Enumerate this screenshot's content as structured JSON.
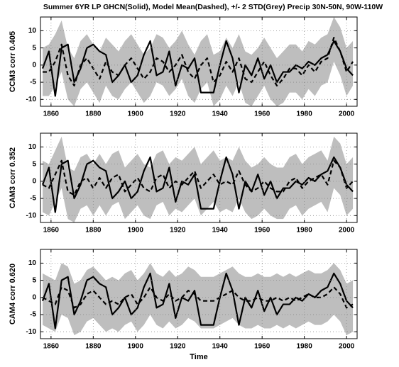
{
  "title": "Summer 6YR LP GHCN(Solid), Model Mean(Dashed), +/- 2 STD(Grey) Precip 30N-50N, 90W-110W",
  "x_label": "Time",
  "chart_data": [
    {
      "type": "line",
      "y_label": "CCM3 corr 0.405",
      "x": [
        1856,
        1859,
        1862,
        1865,
        1868,
        1871,
        1874,
        1877,
        1880,
        1883,
        1886,
        1889,
        1892,
        1895,
        1898,
        1901,
        1904,
        1907,
        1910,
        1913,
        1916,
        1919,
        1922,
        1925,
        1928,
        1931,
        1934,
        1937,
        1940,
        1943,
        1946,
        1949,
        1952,
        1955,
        1958,
        1961,
        1964,
        1967,
        1970,
        1973,
        1976,
        1979,
        1982,
        1985,
        1988,
        1991,
        1994,
        1997,
        2000,
        2003
      ],
      "xlim": [
        1855,
        2005
      ],
      "xticks": [
        1860,
        1880,
        1900,
        1920,
        1940,
        1960,
        1980,
        2000
      ],
      "ylim": [
        -12,
        14
      ],
      "yticks": [
        -10,
        -5,
        0,
        5,
        10
      ],
      "grid": true,
      "band": {
        "color": "#bebebe",
        "upper": [
          5,
          6,
          9,
          13,
          5,
          2,
          7,
          9,
          6,
          4,
          8,
          6,
          4,
          7,
          9,
          6,
          3,
          5,
          9,
          8,
          5,
          7,
          10,
          6,
          3,
          7,
          9,
          3,
          4,
          8,
          5,
          9,
          4,
          3,
          5,
          8,
          5,
          2,
          4,
          6,
          6,
          4,
          7,
          6,
          8,
          9,
          14,
          11,
          5,
          7
        ],
        "lower": [
          -9,
          -9,
          -6,
          -2,
          -10,
          -12,
          -7,
          -5,
          -8,
          -11,
          -6,
          -9,
          -10,
          -7,
          -5,
          -8,
          -11,
          -9,
          -5,
          -6,
          -9,
          -7,
          -4,
          -9,
          -11,
          -7,
          -5,
          -12,
          -10,
          -6,
          -9,
          -5,
          -11,
          -12,
          -9,
          -6,
          -10,
          -12,
          -11,
          -8,
          -8,
          -10,
          -7,
          -9,
          -6,
          -5,
          1,
          -3,
          -9,
          -6
        ]
      },
      "series": [
        {
          "color": "#000000",
          "style": "solid",
          "values": [
            -1,
            4,
            -9,
            5,
            6,
            -5,
            -1,
            5,
            6,
            4,
            3,
            -5,
            -3,
            0,
            -5,
            -3,
            3,
            7,
            -3,
            -2,
            4,
            -6,
            0,
            -1,
            2,
            -8,
            -8,
            -8,
            0,
            7,
            2,
            -8,
            0,
            -3,
            2,
            -4,
            0,
            -5,
            -2,
            -2,
            0,
            -1,
            1,
            0,
            2,
            3,
            7,
            4,
            -1,
            -3
          ]
        },
        {
          "color": "#000000",
          "style": "dashed",
          "values": [
            -2,
            -2,
            1,
            6,
            -3,
            -6,
            0,
            2,
            -1,
            -4,
            1,
            -2,
            -3,
            0,
            2,
            -1,
            -4,
            -2,
            2,
            1,
            -2,
            0,
            3,
            -2,
            -4,
            0,
            2,
            -5,
            -3,
            1,
            -2,
            2,
            -4,
            -5,
            -2,
            1,
            -3,
            -6,
            -4,
            -1,
            -1,
            -3,
            0,
            -2,
            1,
            2,
            8,
            4,
            -2,
            1
          ]
        }
      ]
    },
    {
      "type": "line",
      "y_label": "CAM3 corr 0.352",
      "x": [
        1856,
        1859,
        1862,
        1865,
        1868,
        1871,
        1874,
        1877,
        1880,
        1883,
        1886,
        1889,
        1892,
        1895,
        1898,
        1901,
        1904,
        1907,
        1910,
        1913,
        1916,
        1919,
        1922,
        1925,
        1928,
        1931,
        1934,
        1937,
        1940,
        1943,
        1946,
        1949,
        1952,
        1955,
        1958,
        1961,
        1964,
        1967,
        1970,
        1973,
        1976,
        1979,
        1982,
        1985,
        1988,
        1991,
        1994,
        1997,
        2000,
        2003
      ],
      "xlim": [
        1855,
        2005
      ],
      "xticks": [
        1860,
        1880,
        1900,
        1920,
        1940,
        1960,
        1980,
        2000
      ],
      "ylim": [
        -12,
        14
      ],
      "yticks": [
        -10,
        -5,
        0,
        5,
        10
      ],
      "grid": true,
      "band": {
        "color": "#bebebe",
        "upper": [
          6,
          5,
          9,
          13,
          4,
          3,
          7,
          8,
          5,
          8,
          5,
          8,
          9,
          4,
          6,
          8,
          5,
          4,
          8,
          9,
          5,
          7,
          6,
          8,
          10,
          5,
          7,
          9,
          6,
          7,
          6,
          10,
          6,
          4,
          5,
          7,
          5,
          4,
          4,
          7,
          8,
          5,
          7,
          8,
          9,
          6,
          13,
          11,
          5,
          7
        ],
        "lower": [
          -9,
          -10,
          -6,
          -2,
          -11,
          -12,
          -8,
          -7,
          -10,
          -7,
          -10,
          -7,
          -6,
          -11,
          -9,
          -7,
          -10,
          -11,
          -7,
          -6,
          -10,
          -8,
          -9,
          -7,
          -5,
          -10,
          -8,
          -6,
          -9,
          -8,
          -9,
          -5,
          -9,
          -11,
          -10,
          -8,
          -10,
          -11,
          -11,
          -8,
          -7,
          -10,
          -8,
          -7,
          -6,
          -9,
          -2,
          -4,
          -10,
          -8
        ]
      },
      "series": [
        {
          "color": "#000000",
          "style": "solid",
          "values": [
            -1,
            4,
            -9,
            5,
            6,
            -5,
            -1,
            5,
            6,
            4,
            3,
            -5,
            -3,
            0,
            -5,
            -3,
            3,
            7,
            -3,
            -2,
            4,
            -6,
            0,
            -1,
            2,
            -8,
            -8,
            -8,
            0,
            7,
            2,
            -8,
            0,
            -3,
            2,
            -4,
            0,
            -5,
            -2,
            -2,
            0,
            -1,
            1,
            0,
            2,
            3,
            7,
            4,
            -1,
            -3
          ]
        },
        {
          "color": "#000000",
          "style": "dashed",
          "values": [
            -1,
            -2,
            2,
            6,
            -3,
            -4,
            0,
            1,
            -2,
            1,
            -2,
            1,
            2,
            -3,
            -1,
            1,
            -2,
            -3,
            1,
            2,
            -2,
            0,
            -1,
            1,
            3,
            -2,
            0,
            2,
            -1,
            0,
            -1,
            3,
            -1,
            -3,
            -2,
            0,
            -2,
            -3,
            -3,
            0,
            1,
            -2,
            0,
            1,
            2,
            -1,
            6,
            4,
            -2,
            0
          ]
        }
      ]
    },
    {
      "type": "line",
      "y_label": "CAM4 corr 0.620",
      "x": [
        1856,
        1859,
        1862,
        1865,
        1868,
        1871,
        1874,
        1877,
        1880,
        1883,
        1886,
        1889,
        1892,
        1895,
        1898,
        1901,
        1904,
        1907,
        1910,
        1913,
        1916,
        1919,
        1922,
        1925,
        1928,
        1931,
        1934,
        1937,
        1940,
        1943,
        1946,
        1949,
        1952,
        1955,
        1958,
        1961,
        1964,
        1967,
        1970,
        1973,
        1976,
        1979,
        1982,
        1985,
        1988,
        1991,
        1994,
        1997,
        2000,
        2003
      ],
      "xlim": [
        1855,
        2005
      ],
      "xticks": [
        1860,
        1880,
        1900,
        1920,
        1940,
        1960,
        1980,
        2000
      ],
      "ylim": [
        -12,
        14
      ],
      "yticks": [
        -10,
        -5,
        0,
        5,
        10
      ],
      "grid": true,
      "band": {
        "color": "#bebebe",
        "upper": [
          7,
          6,
          5,
          10,
          9,
          4,
          5,
          8,
          9,
          7,
          5,
          6,
          5,
          7,
          8,
          5,
          7,
          10,
          7,
          6,
          8,
          6,
          7,
          9,
          8,
          6,
          6,
          6,
          7,
          8,
          9,
          7,
          6,
          6,
          7,
          6,
          6,
          7,
          6,
          7,
          6,
          7,
          8,
          7,
          7,
          8,
          10,
          8,
          4,
          5
        ],
        "lower": [
          -8,
          -9,
          -10,
          -5,
          -6,
          -11,
          -10,
          -7,
          -6,
          -8,
          -10,
          -9,
          -10,
          -8,
          -7,
          -10,
          -8,
          -5,
          -8,
          -9,
          -7,
          -9,
          -8,
          -6,
          -7,
          -9,
          -9,
          -9,
          -8,
          -7,
          -6,
          -8,
          -9,
          -9,
          -8,
          -9,
          -9,
          -8,
          -9,
          -8,
          -9,
          -8,
          -7,
          -8,
          -8,
          -7,
          -5,
          -7,
          -11,
          -10
        ]
      },
      "series": [
        {
          "color": "#000000",
          "style": "solid",
          "values": [
            -1,
            4,
            -9,
            5,
            6,
            -5,
            -1,
            5,
            6,
            4,
            3,
            -5,
            -3,
            0,
            -5,
            -3,
            3,
            7,
            -3,
            -2,
            4,
            -6,
            0,
            -1,
            2,
            -8,
            -8,
            -8,
            0,
            7,
            2,
            -8,
            0,
            -3,
            2,
            -4,
            0,
            -5,
            -2,
            -2,
            0,
            -1,
            1,
            0,
            2,
            3,
            7,
            4,
            -1,
            -3
          ]
        },
        {
          "color": "#000000",
          "style": "dashed",
          "values": [
            0,
            -1,
            -2,
            3,
            2,
            -3,
            -2,
            1,
            2,
            0,
            -2,
            -1,
            -2,
            0,
            1,
            -2,
            0,
            3,
            0,
            -1,
            1,
            -1,
            0,
            2,
            1,
            -1,
            -1,
            -1,
            0,
            1,
            2,
            0,
            -1,
            -1,
            0,
            -1,
            -1,
            0,
            -1,
            0,
            -1,
            0,
            1,
            0,
            0,
            1,
            3,
            1,
            -3,
            -2
          ]
        }
      ]
    }
  ]
}
